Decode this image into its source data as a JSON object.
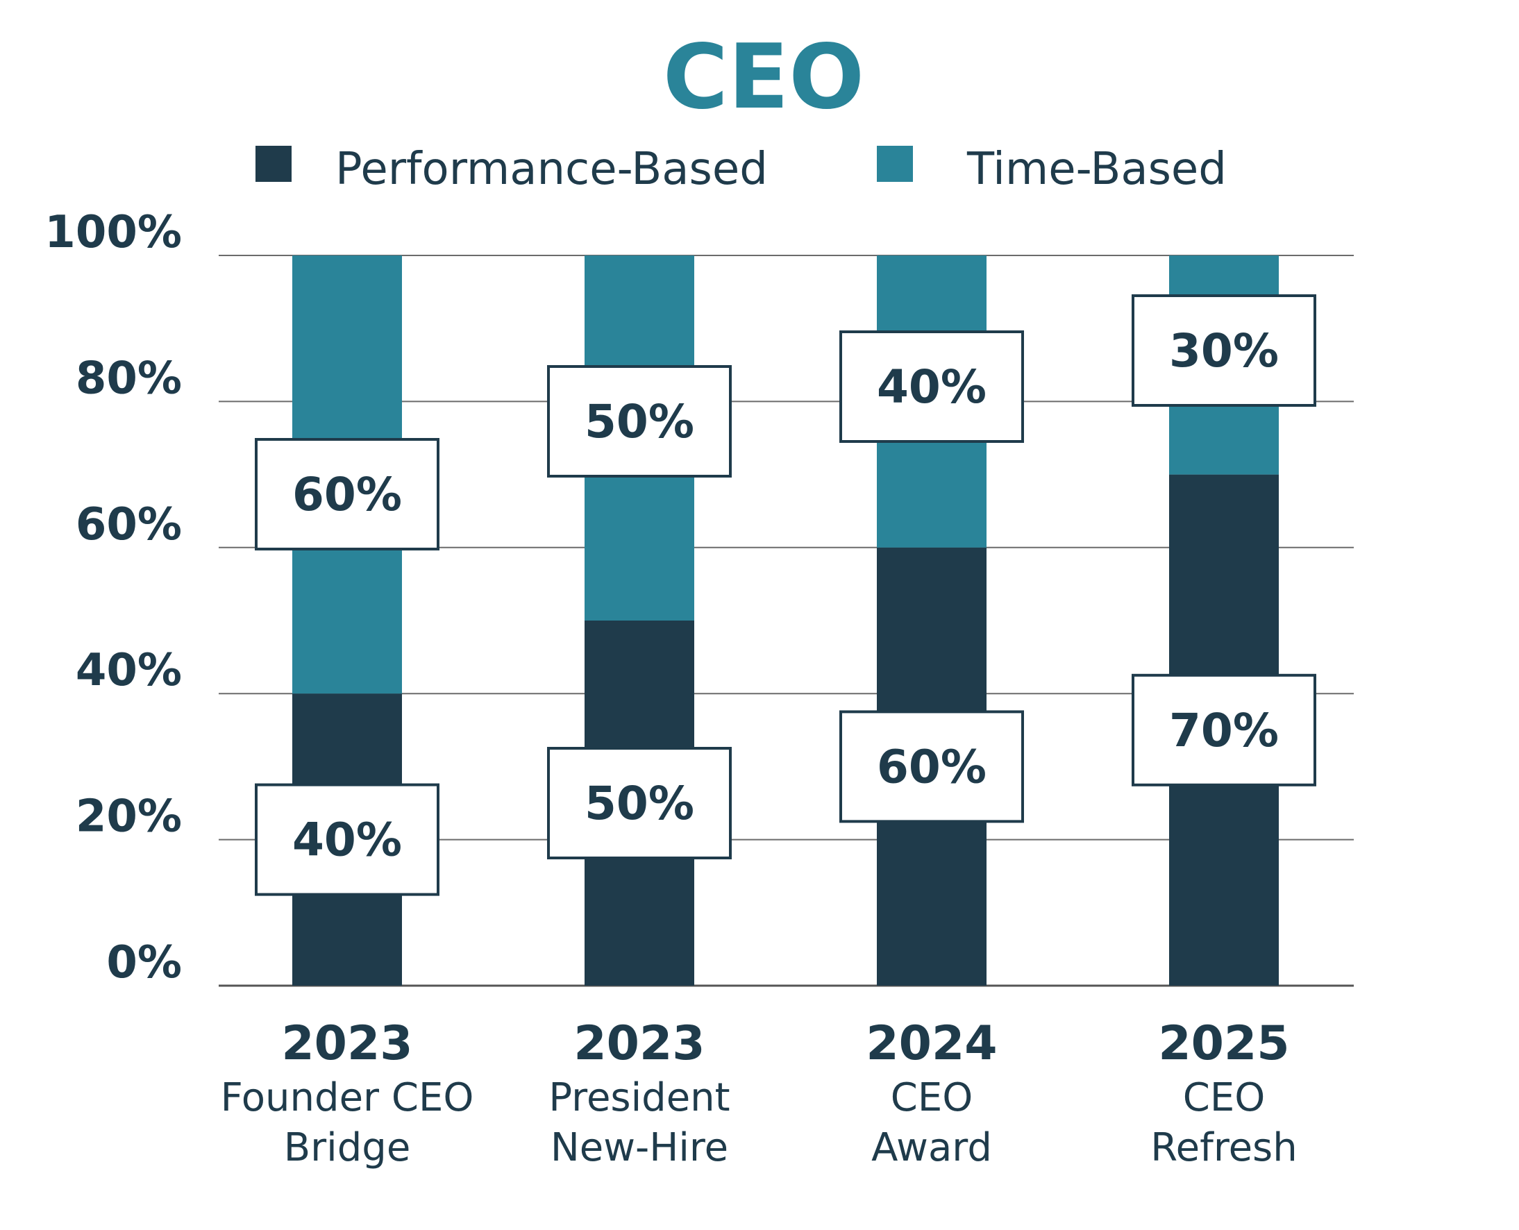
{
  "chart_data": {
    "type": "bar",
    "stacked": true,
    "title": "CEO",
    "categories": [
      {
        "year": "2023",
        "lines": [
          "Founder CEO",
          "Bridge"
        ]
      },
      {
        "year": "2023",
        "lines": [
          "President",
          "New-Hire"
        ]
      },
      {
        "year": "2024",
        "lines": [
          "CEO",
          "Award"
        ]
      },
      {
        "year": "2025",
        "lines": [
          "CEO",
          "Refresh"
        ]
      }
    ],
    "series": [
      {
        "name": "Performance-Based",
        "color": "#1f3b4b",
        "values": [
          40,
          50,
          60,
          70
        ],
        "labels": [
          "40%",
          "50%",
          "60%",
          "70%"
        ]
      },
      {
        "name": "Time-Based",
        "color": "#2a8499",
        "values": [
          60,
          50,
          40,
          30
        ],
        "labels": [
          "60%",
          "50%",
          "40%",
          "30%"
        ]
      }
    ],
    "y_ticks": [
      "0%",
      "20%",
      "40%",
      "60%",
      "80%",
      "100%"
    ],
    "ylim": [
      0,
      100
    ],
    "grid": true,
    "legend_position": "top"
  }
}
